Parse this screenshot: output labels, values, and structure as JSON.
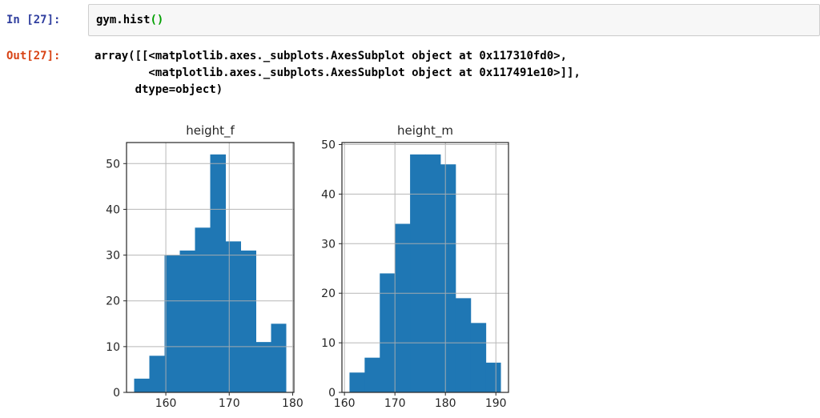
{
  "notebook": {
    "in_prompt": "In [27]:",
    "out_prompt": "Out[27]:",
    "code_main": "gym.hist",
    "code_parens": "()",
    "output_text": "array([[<matplotlib.axes._subplots.AxesSubplot object at 0x117310fd0>,\n        <matplotlib.axes._subplots.AxesSubplot object at 0x117491e10>]],\n      dtype=object)"
  },
  "colors": {
    "in_prompt": "#303F9F",
    "out_prompt": "#D84315",
    "code_paren": "#00a000",
    "bar": "#1f77b4",
    "grid": "#b0b0b0",
    "spine": "#262626",
    "chart_text": "#262626",
    "cell_bg": "#f7f7f7",
    "cell_border": "#cfcfcf"
  },
  "chart_data": [
    {
      "type": "bar",
      "subtype": "histogram",
      "title": "height_f",
      "xlabel": "",
      "ylabel": "",
      "bin_edges": [
        155,
        157.4,
        159.8,
        162.2,
        164.6,
        167,
        169.4,
        171.8,
        174.2,
        176.6,
        179
      ],
      "values": [
        3,
        8,
        30,
        31,
        36,
        52,
        33,
        31,
        11,
        15
      ],
      "xticks": [
        160,
        170,
        180
      ],
      "yticks": [
        0,
        10,
        20,
        30,
        40,
        50
      ],
      "xlim": [
        153.8,
        180.2
      ],
      "ylim": [
        0,
        54.6
      ],
      "grid": true,
      "legend": false
    },
    {
      "type": "bar",
      "subtype": "histogram",
      "title": "height_m",
      "xlabel": "",
      "ylabel": "",
      "bin_edges": [
        161,
        164,
        167,
        170,
        173,
        176,
        179,
        182,
        185,
        188,
        191
      ],
      "values": [
        4,
        7,
        24,
        34,
        48,
        48,
        46,
        19,
        14,
        6
      ],
      "xticks": [
        160,
        170,
        180,
        190
      ],
      "yticks": [
        0,
        10,
        20,
        30,
        40,
        50
      ],
      "xlim": [
        159.5,
        192.5
      ],
      "ylim": [
        0,
        50.4
      ],
      "grid": true,
      "legend": false
    }
  ]
}
